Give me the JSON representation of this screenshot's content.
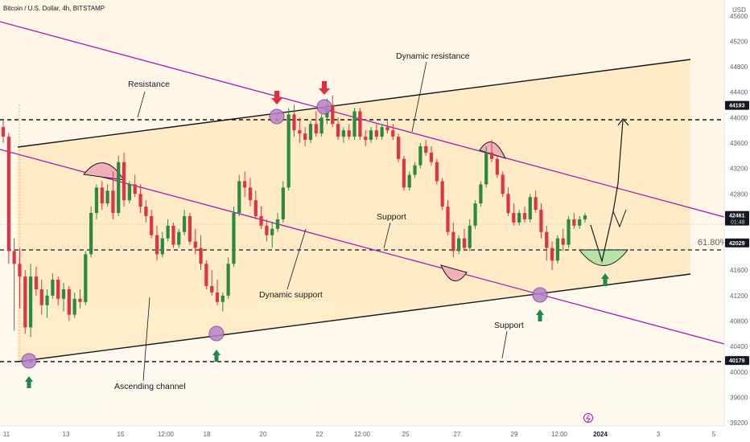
{
  "header": {
    "title": "Bitcoin / U.S. Dollar, 4h, BITSTAMP",
    "currency": "USD"
  },
  "chart_data": {
    "type": "candlestick",
    "title": "Bitcoin / U.S. Dollar, 4h, BITSTAMP",
    "currency": "USD",
    "ylim": [
      39150,
      45850
    ],
    "y_ticks": [
      39200,
      39600,
      40000,
      40400,
      40800,
      41200,
      41600,
      42000,
      42400,
      42800,
      43200,
      43600,
      44000,
      44400,
      44800,
      45200,
      45600
    ],
    "x_ticks": [
      "11",
      "13",
      "15",
      "12:00",
      "18",
      "20",
      "22",
      "12:00",
      "25",
      "27",
      "29",
      "12:00",
      "2024",
      "3",
      "5"
    ],
    "price_tags": [
      {
        "value": 44193,
        "label": "44193",
        "color": "#131722"
      },
      {
        "value": 42461,
        "label": "42461",
        "sub": "01:48",
        "color": "#131722"
      },
      {
        "value": 42029,
        "label": "42029",
        "color": "#131722"
      },
      {
        "value": 40179,
        "label": "40179",
        "color": "#131722"
      }
    ],
    "fib_label": "61.80%",
    "annotations": [
      "Resistance",
      "Dynamic resistance",
      "Support",
      "Dynamic support",
      "Support",
      "Ascending channel"
    ],
    "candles": [
      [
        43850,
        43950,
        43600,
        43700
      ],
      [
        43700,
        43760,
        41700,
        41900
      ],
      [
        41900,
        42100,
        40650,
        41700
      ],
      [
        41700,
        41950,
        41000,
        41500
      ],
      [
        41500,
        41600,
        40600,
        40700
      ],
      [
        40700,
        41700,
        40550,
        41500
      ],
      [
        41500,
        41650,
        41200,
        41300
      ],
      [
        41300,
        41450,
        40900,
        41050
      ],
      [
        41050,
        41300,
        40850,
        41200
      ],
      [
        41200,
        41550,
        41150,
        41450
      ],
      [
        41450,
        41500,
        41050,
        41150
      ],
      [
        41150,
        41400,
        40950,
        41300
      ],
      [
        41300,
        41350,
        40800,
        40900
      ],
      [
        40900,
        41250,
        40850,
        41150
      ],
      [
        41150,
        41300,
        41000,
        41100
      ],
      [
        41100,
        41900,
        41050,
        41850
      ],
      [
        41850,
        42600,
        41800,
        42500
      ],
      [
        42500,
        42950,
        42400,
        42900
      ],
      [
        42900,
        43000,
        42550,
        42650
      ],
      [
        42650,
        42950,
        42600,
        42850
      ],
      [
        42850,
        43150,
        42400,
        42500
      ],
      [
        42500,
        43400,
        42450,
        43300
      ],
      [
        43300,
        43450,
        42600,
        42700
      ],
      [
        42700,
        43000,
        42650,
        42950
      ],
      [
        42950,
        43100,
        42750,
        42800
      ],
      [
        42800,
        42950,
        42500,
        42600
      ],
      [
        42600,
        42700,
        42350,
        42450
      ],
      [
        42450,
        42550,
        42100,
        42150
      ],
      [
        42150,
        42300,
        41750,
        41850
      ],
      [
        41850,
        42200,
        41800,
        42100
      ],
      [
        42100,
        42400,
        42050,
        42300
      ],
      [
        42300,
        42350,
        41950,
        42000
      ],
      [
        42000,
        42250,
        41950,
        42200
      ],
      [
        42200,
        42550,
        42150,
        42450
      ],
      [
        42450,
        42500,
        42000,
        42050
      ],
      [
        42050,
        42250,
        41850,
        41950
      ],
      [
        41950,
        42150,
        41600,
        41700
      ],
      [
        41700,
        41750,
        41300,
        41350
      ],
      [
        41350,
        41600,
        41200,
        41250
      ],
      [
        41250,
        41450,
        41050,
        41100
      ],
      [
        41100,
        41250,
        40950,
        41200
      ],
      [
        41200,
        41800,
        41150,
        41700
      ],
      [
        41700,
        42600,
        41650,
        42500
      ],
      [
        42500,
        43100,
        42450,
        43000
      ],
      [
        43000,
        43150,
        42750,
        42900
      ],
      [
        42900,
        43050,
        42600,
        42700
      ],
      [
        42700,
        42850,
        42400,
        42450
      ],
      [
        42450,
        42600,
        42250,
        42300
      ],
      [
        42300,
        42400,
        42050,
        42150
      ],
      [
        42150,
        42350,
        41950,
        42250
      ],
      [
        42250,
        42500,
        42200,
        42400
      ],
      [
        42400,
        43000,
        42350,
        42900
      ],
      [
        42900,
        44150,
        42850,
        44050
      ],
      [
        44050,
        44200,
        43700,
        43800
      ],
      [
        43800,
        44000,
        43600,
        43750
      ],
      [
        43750,
        43850,
        43550,
        43650
      ],
      [
        43650,
        43950,
        43600,
        43900
      ],
      [
        43900,
        44100,
        43700,
        43750
      ],
      [
        43750,
        44050,
        43700,
        44000
      ],
      [
        44000,
        44300,
        43900,
        44200
      ],
      [
        44200,
        44350,
        43850,
        43900
      ],
      [
        43900,
        44000,
        43650,
        43700
      ],
      [
        43700,
        43850,
        43600,
        43800
      ],
      [
        43800,
        43900,
        43650,
        43700
      ],
      [
        43700,
        44150,
        43650,
        44100
      ],
      [
        44100,
        44150,
        43650,
        43700
      ],
      [
        43700,
        43800,
        43550,
        43650
      ],
      [
        43650,
        43850,
        43600,
        43800
      ],
      [
        43800,
        43900,
        43650,
        43700
      ],
      [
        43700,
        43900,
        43650,
        43850
      ],
      [
        43850,
        43950,
        43750,
        43800
      ],
      [
        43800,
        43900,
        43650,
        43700
      ],
      [
        43700,
        43750,
        43300,
        43350
      ],
      [
        43350,
        43400,
        42850,
        42900
      ],
      [
        42900,
        43150,
        42850,
        43100
      ],
      [
        43100,
        43300,
        43050,
        43250
      ],
      [
        43250,
        43600,
        43200,
        43550
      ],
      [
        43550,
        43650,
        43400,
        43450
      ],
      [
        43450,
        43550,
        43250,
        43300
      ],
      [
        43300,
        43350,
        42950,
        43000
      ],
      [
        43000,
        43050,
        42550,
        42600
      ],
      [
        42600,
        42700,
        42150,
        42200
      ],
      [
        42200,
        42350,
        41800,
        41900
      ],
      [
        41900,
        42150,
        41850,
        42100
      ],
      [
        42100,
        42250,
        41900,
        41950
      ],
      [
        41950,
        42400,
        41900,
        42300
      ],
      [
        42300,
        42700,
        42250,
        42650
      ],
      [
        42650,
        43000,
        42600,
        42950
      ],
      [
        42950,
        43550,
        42900,
        43450
      ],
      [
        43450,
        43650,
        43300,
        43350
      ],
      [
        43350,
        43400,
        43050,
        43100
      ],
      [
        43100,
        43150,
        42750,
        42800
      ],
      [
        42800,
        42900,
        42450,
        42500
      ],
      [
        42500,
        42650,
        42300,
        42350
      ],
      [
        42350,
        42550,
        42300,
        42500
      ],
      [
        42500,
        42600,
        42350,
        42400
      ],
      [
        42400,
        42800,
        42350,
        42750
      ],
      [
        42750,
        42850,
        42500,
        42550
      ],
      [
        42550,
        42650,
        42100,
        42200
      ],
      [
        42200,
        42300,
        41750,
        41950
      ],
      [
        41950,
        42050,
        41600,
        41750
      ],
      [
        41750,
        42150,
        41700,
        42100
      ],
      [
        42100,
        42250,
        41900,
        42000
      ],
      [
        42000,
        42450,
        41950,
        42400
      ],
      [
        42400,
        42500,
        42250,
        42300
      ],
      [
        42300,
        42450,
        42250,
        42400
      ],
      [
        42400,
        42500,
        42350,
        42461
      ]
    ]
  }
}
